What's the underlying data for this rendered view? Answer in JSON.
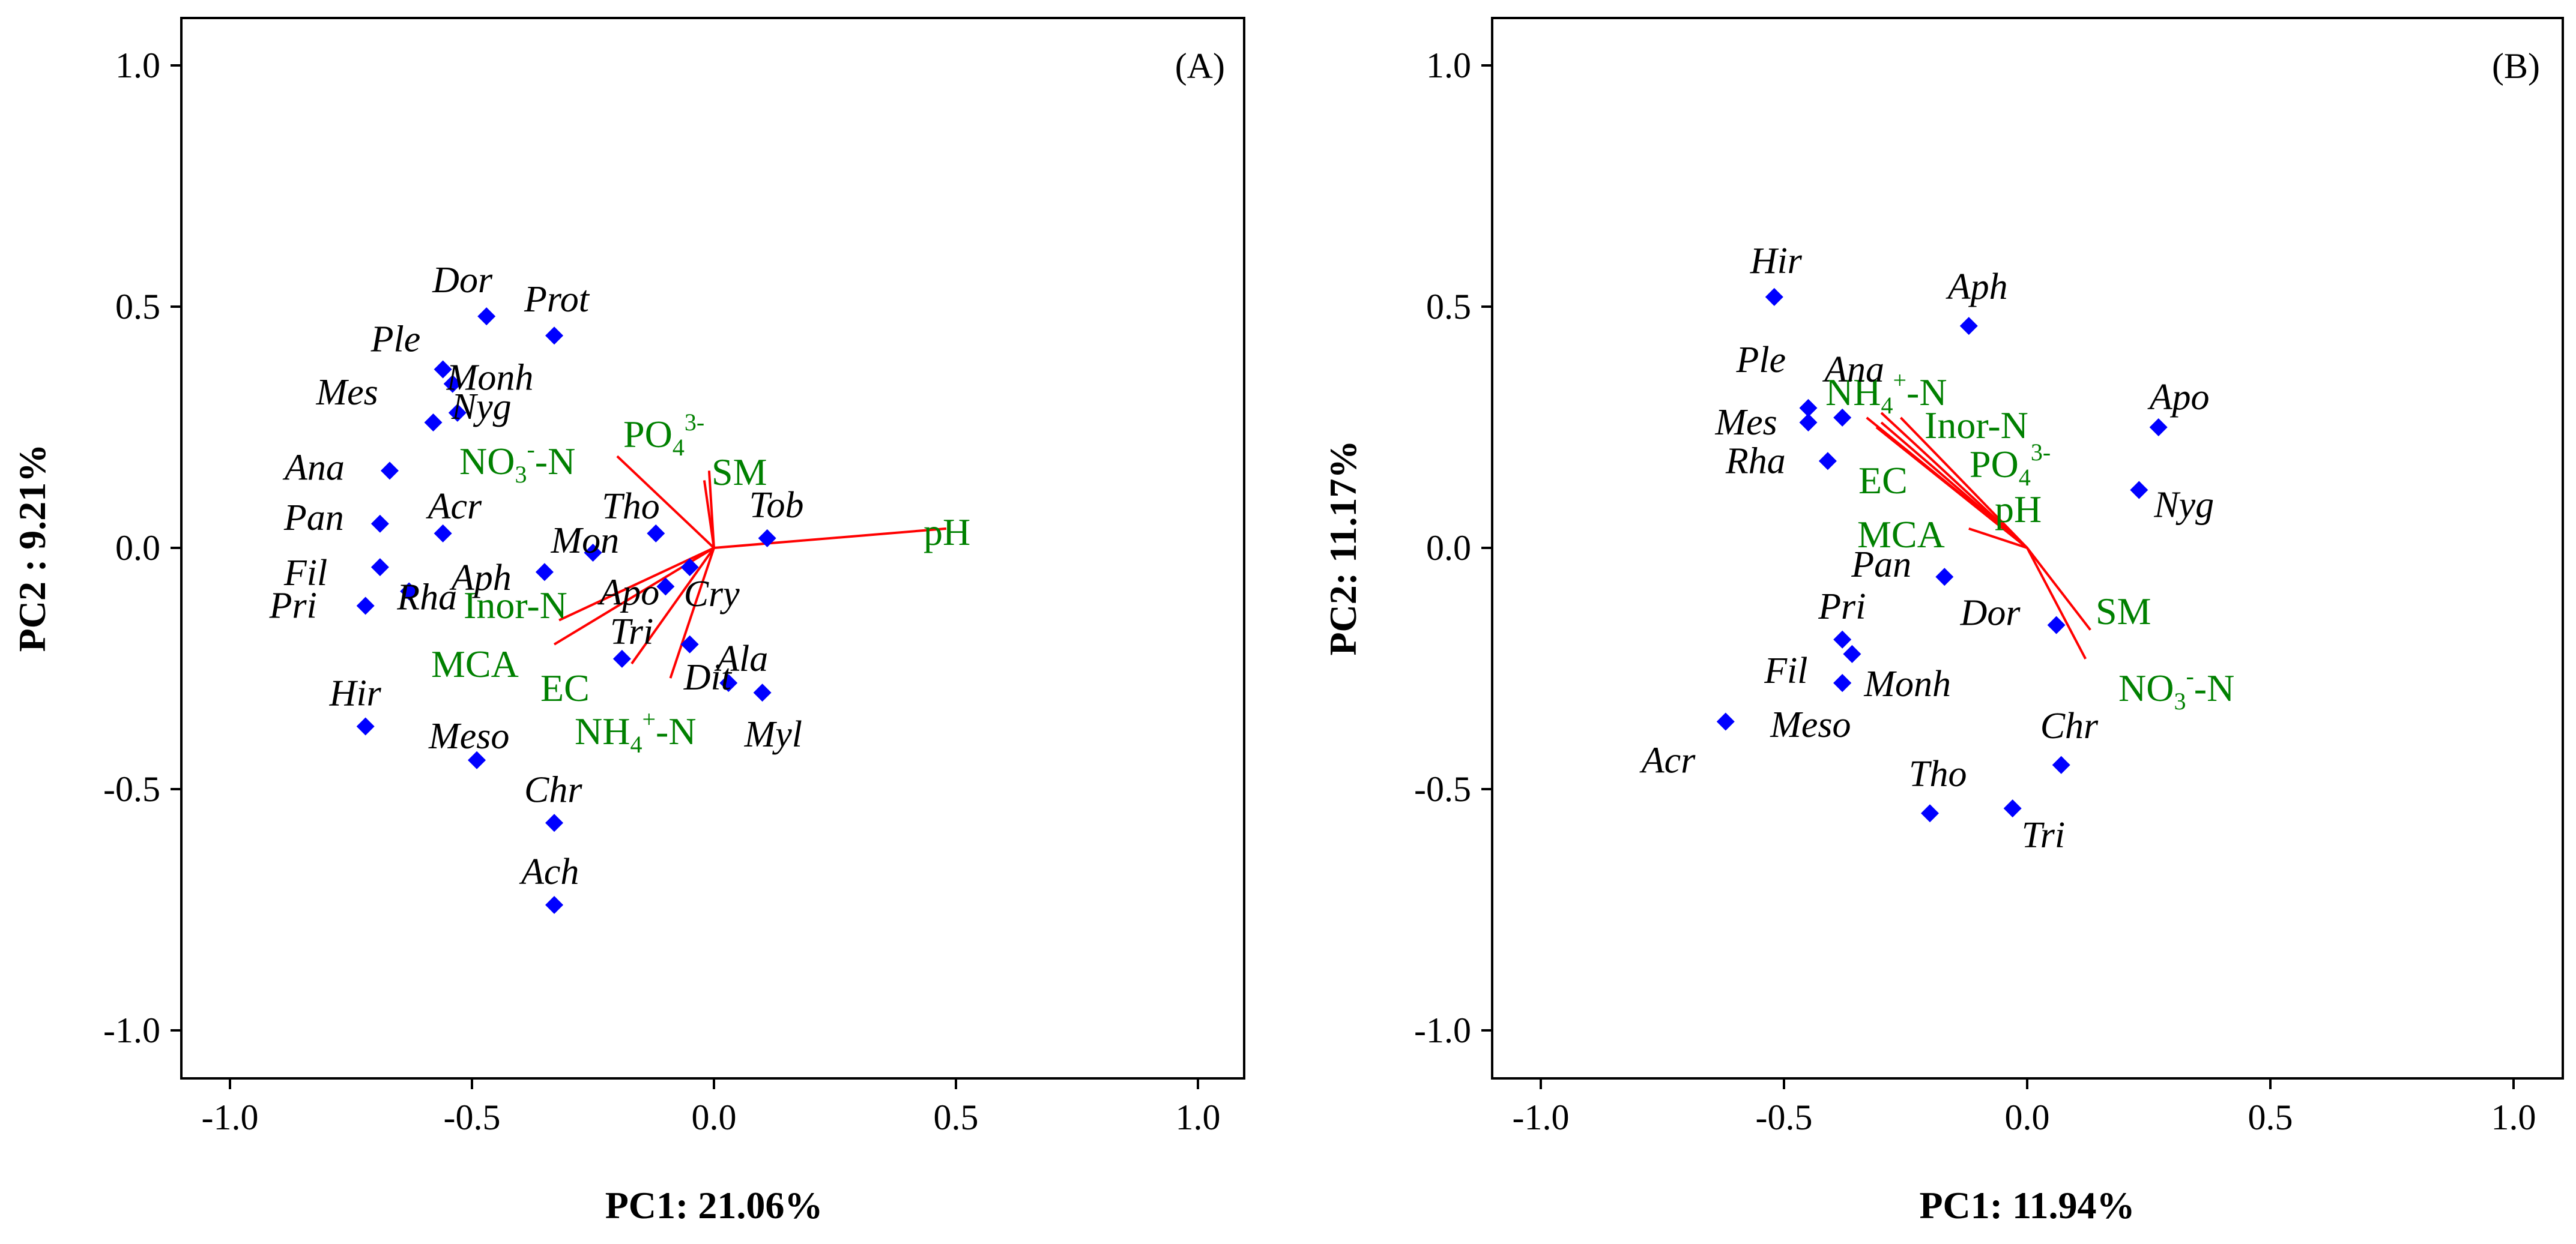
{
  "chart_data": [
    {
      "type": "scatter",
      "panel_label": "(A)",
      "xlabel": "PC1: 21.06%",
      "ylabel": "PC2 :  9.21%",
      "xlim": [
        -1.1,
        1.1
      ],
      "ylim": [
        -1.1,
        1.1
      ],
      "xticks": [
        "-1.0",
        "-0.5",
        "0.0",
        "0.5",
        "1.0"
      ],
      "yticks": [
        "1.0",
        "0.5",
        "0.0",
        "-0.5",
        "-1.0"
      ],
      "grid": false,
      "species": [
        {
          "name": "Dor",
          "x": -0.47,
          "y": 0.48
        },
        {
          "name": "Prot",
          "x": -0.33,
          "y": 0.44
        },
        {
          "name": "Ple",
          "x": -0.56,
          "y": 0.37
        },
        {
          "name": "Monh",
          "x": -0.54,
          "y": 0.34
        },
        {
          "name": "Mes",
          "x": -0.58,
          "y": 0.26
        },
        {
          "name": "Nyg",
          "x": -0.53,
          "y": 0.28
        },
        {
          "name": "Ana",
          "x": -0.67,
          "y": 0.16
        },
        {
          "name": "Pan",
          "x": -0.69,
          "y": 0.05
        },
        {
          "name": "Acr",
          "x": -0.56,
          "y": 0.03
        },
        {
          "name": "Fil",
          "x": -0.69,
          "y": -0.04
        },
        {
          "name": "Rha",
          "x": -0.63,
          "y": -0.09
        },
        {
          "name": "Pri",
          "x": -0.72,
          "y": -0.12
        },
        {
          "name": "Aph",
          "x": -0.35,
          "y": -0.05
        },
        {
          "name": "Mon",
          "x": -0.25,
          "y": -0.01
        },
        {
          "name": "Tho",
          "x": -0.12,
          "y": 0.03
        },
        {
          "name": "Tob",
          "x": 0.11,
          "y": 0.02
        },
        {
          "name": "Apo",
          "x": -0.1,
          "y": -0.08
        },
        {
          "name": "Cry",
          "x": -0.05,
          "y": -0.04
        },
        {
          "name": "Dit",
          "x": -0.05,
          "y": -0.2
        },
        {
          "name": "Tri",
          "x": -0.19,
          "y": -0.23
        },
        {
          "name": "Ala",
          "x": 0.03,
          "y": -0.28
        },
        {
          "name": "Myl",
          "x": 0.1,
          "y": -0.3
        },
        {
          "name": "Hir",
          "x": -0.72,
          "y": -0.37
        },
        {
          "name": "Meso",
          "x": -0.49,
          "y": -0.44
        },
        {
          "name": "Chr",
          "x": -0.33,
          "y": -0.57
        },
        {
          "name": "Ach",
          "x": -0.33,
          "y": -0.74
        }
      ],
      "variables": [
        {
          "name": "pH",
          "main": "pH",
          "sup": "",
          "sub": "",
          "tail": "",
          "x": 0.48,
          "y": 0.04
        },
        {
          "name": "PO4 3-",
          "main": "PO",
          "sub": "4",
          "sup": "3-",
          "tail": "",
          "x": -0.01,
          "y": 0.16
        },
        {
          "name": "SM",
          "main": "SM",
          "sup": "",
          "sub": "",
          "tail": "",
          "x": -0.02,
          "y": 0.14
        },
        {
          "name": "NO3--N",
          "main": "NO",
          "sub": "3",
          "sup": "-",
          "tail": "-N",
          "x": -0.2,
          "y": 0.19
        },
        {
          "name": "Inor-N",
          "main": "Inor-N",
          "sup": "",
          "sub": "",
          "tail": "",
          "x": -0.33,
          "y": -0.2
        },
        {
          "name": "MCA",
          "main": "MCA",
          "sup": "",
          "sub": "",
          "tail": "",
          "x": -0.32,
          "y": -0.15
        },
        {
          "name": "EC",
          "main": "EC",
          "sup": "",
          "sub": "",
          "tail": "",
          "x": -0.17,
          "y": -0.24
        },
        {
          "name": "NH4+-N",
          "main": "NH",
          "sub": "4",
          "sup": "+",
          "tail": "-N",
          "x": -0.09,
          "y": -0.27
        }
      ]
    },
    {
      "type": "scatter",
      "panel_label": "(B)",
      "xlabel": "PC1: 11.94%",
      "ylabel": "PC2: 11.17%",
      "xlim": [
        -1.1,
        1.1
      ],
      "ylim": [
        -1.1,
        1.1
      ],
      "xticks": [
        "-1.0",
        "-0.5",
        "0.0",
        "0.5",
        "1.0"
      ],
      "yticks": [
        "1.0",
        "0.5",
        "0.0",
        "-0.5",
        "-1.0"
      ],
      "grid": false,
      "species": [
        {
          "name": "Hir",
          "x": -0.52,
          "y": 0.52
        },
        {
          "name": "Aph",
          "x": -0.12,
          "y": 0.46
        },
        {
          "name": "Ana",
          "x": -0.38,
          "y": 0.27
        },
        {
          "name": "Ple",
          "x": -0.45,
          "y": 0.29
        },
        {
          "name": "Mes",
          "x": -0.45,
          "y": 0.26
        },
        {
          "name": "Apo",
          "x": 0.27,
          "y": 0.25
        },
        {
          "name": "Nyg",
          "x": 0.23,
          "y": 0.12
        },
        {
          "name": "Rha",
          "x": -0.41,
          "y": 0.18
        },
        {
          "name": "Pan",
          "x": -0.17,
          "y": -0.06
        },
        {
          "name": "Pri",
          "x": -0.38,
          "y": -0.19
        },
        {
          "name": "Monh",
          "x": -0.36,
          "y": -0.22
        },
        {
          "name": "Dor",
          "x": 0.06,
          "y": -0.16
        },
        {
          "name": "Fil",
          "x": -0.38,
          "y": -0.28
        },
        {
          "name": "Meso",
          "x": -0.38,
          "y": -0.28
        },
        {
          "name": "Acr",
          "x": -0.62,
          "y": -0.36
        },
        {
          "name": "Chr",
          "x": 0.07,
          "y": -0.45
        },
        {
          "name": "Tho",
          "x": -0.2,
          "y": -0.55
        },
        {
          "name": "Tri",
          "x": -0.03,
          "y": -0.54
        }
      ],
      "variables": [
        {
          "name": "NH4+-N",
          "main": "NH",
          "sub": "4",
          "sup": "+",
          "tail": "-N",
          "x": -0.33,
          "y": 0.27
        },
        {
          "name": "Inor-N",
          "main": "Inor-N",
          "sup": "",
          "sub": "",
          "tail": "",
          "x": -0.3,
          "y": 0.28
        },
        {
          "name": "PO4 3-",
          "main": "PO",
          "sub": "4",
          "sup": "3-",
          "tail": "",
          "x": -0.3,
          "y": 0.26
        },
        {
          "name": "EC",
          "main": "EC",
          "sup": "",
          "sub": "",
          "tail": "",
          "x": -0.31,
          "y": 0.25
        },
        {
          "name": "MCA",
          "main": "MCA",
          "sup": "",
          "sub": "",
          "tail": "",
          "x": -0.26,
          "y": 0.27
        },
        {
          "name": "pH",
          "main": "pH",
          "sup": "",
          "sub": "",
          "tail": "",
          "x": -0.12,
          "y": 0.04
        },
        {
          "name": "SM",
          "main": "SM",
          "sup": "",
          "sub": "",
          "tail": "",
          "x": 0.13,
          "y": -0.17
        },
        {
          "name": "NO3--N",
          "main": "NO",
          "sub": "3",
          "sup": "-",
          "tail": "-N",
          "x": 0.12,
          "y": -0.23
        }
      ]
    }
  ],
  "colors": {
    "species_marker": "#0000ff",
    "loading_vector": "#ff0000",
    "variable_label": "#008000"
  }
}
